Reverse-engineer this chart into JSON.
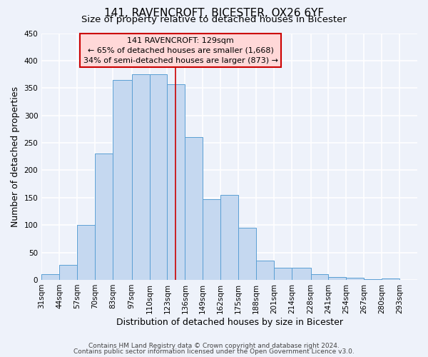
{
  "title": "141, RAVENCROFT, BICESTER, OX26 6YF",
  "subtitle": "Size of property relative to detached houses in Bicester",
  "xlabel": "Distribution of detached houses by size in Bicester",
  "ylabel": "Number of detached properties",
  "bin_labels": [
    "31sqm",
    "44sqm",
    "57sqm",
    "70sqm",
    "83sqm",
    "97sqm",
    "110sqm",
    "123sqm",
    "136sqm",
    "149sqm",
    "162sqm",
    "175sqm",
    "188sqm",
    "201sqm",
    "214sqm",
    "228sqm",
    "241sqm",
    "254sqm",
    "267sqm",
    "280sqm",
    "293sqm"
  ],
  "bin_edges": [
    31,
    44,
    57,
    70,
    83,
    97,
    110,
    123,
    136,
    149,
    162,
    175,
    188,
    201,
    214,
    228,
    241,
    254,
    267,
    280,
    293
  ],
  "bar_heights": [
    10,
    27,
    100,
    230,
    365,
    375,
    375,
    357,
    260,
    147,
    155,
    95,
    35,
    22,
    22,
    11,
    5,
    4,
    1,
    3
  ],
  "bar_color": "#c5d8f0",
  "bar_edge_color": "#5a9fd4",
  "vline_x": 129,
  "vline_color": "#cc0000",
  "annotation_title": "141 RAVENCROFT: 129sqm",
  "annotation_line1": "← 65% of detached houses are smaller (1,668)",
  "annotation_line2": "34% of semi-detached houses are larger (873) →",
  "annotation_box_color": "#ffd8d8",
  "annotation_border_color": "#cc0000",
  "ylim": [
    0,
    450
  ],
  "yticks": [
    0,
    50,
    100,
    150,
    200,
    250,
    300,
    350,
    400,
    450
  ],
  "footer1": "Contains HM Land Registry data © Crown copyright and database right 2024.",
  "footer2": "Contains public sector information licensed under the Open Government Licence v3.0.",
  "bg_color": "#eef2fa",
  "grid_color": "#ffffff",
  "title_fontsize": 11,
  "subtitle_fontsize": 9.5,
  "label_fontsize": 9,
  "tick_fontsize": 7.5,
  "footer_fontsize": 6.5,
  "annotation_fontsize": 8
}
